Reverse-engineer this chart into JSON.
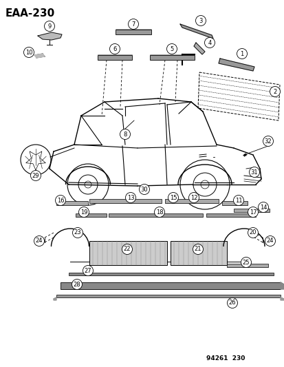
{
  "title": "EAA-230",
  "footer": "94261  230",
  "bg_color": "#ffffff",
  "title_fontsize": 11,
  "footer_fontsize": 6.5,
  "fig_width": 4.14,
  "fig_height": 5.33,
  "dpi": 100
}
